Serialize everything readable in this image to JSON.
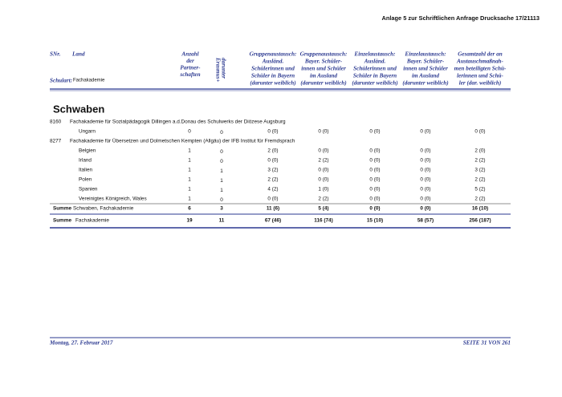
{
  "header": {
    "note": "Anlage 5 zur Schriftlichen Anfrage Drucksache 17/21113"
  },
  "table": {
    "columns": {
      "snr": "SNr.",
      "land": "Land",
      "schulart_label": "Schulart:",
      "schulart": "Fachakademie",
      "partner": [
        "Anzahl",
        "der",
        "Partner-",
        "schaften"
      ],
      "erasmus": [
        "darunter",
        "Erasmus+"
      ],
      "groups": [
        [
          "Gruppenaustausch:",
          "Ausländ.",
          "Schülerinnen und",
          "Schüler in Bayern",
          "(darunter weiblich)"
        ],
        [
          "Gruppenaustausch:",
          "Bayer. Schüler-",
          "innen und Schüler",
          "im Ausland",
          "(darunter weiblich)"
        ],
        [
          "Einzelaustausch:",
          "Ausländ.",
          "Schülerinnen und",
          "Schüler in Bayern",
          "(darunter weiblich)"
        ],
        [
          "Einzelaustausch:",
          "Bayer. Schüler-",
          "innen und Schüler",
          "im Ausland",
          "(darunter weiblich)"
        ],
        [
          "Gesamtzahl der an",
          "Austauschmaßnah-",
          "men beteiligten Schü-",
          "lerinnen und Schü-",
          "ler (dar. weiblich)"
        ]
      ]
    },
    "region": "Schwaben",
    "schools": [
      {
        "snr": "8160",
        "name": "Fachakademie für Sozialpädagogik Dillingen a.d.Donau des Schulwerks der Diözese Augsburg",
        "rows": [
          [
            "Ungarn",
            "0",
            "0",
            "0 (0)",
            "0 (0)",
            "0 (0)",
            "0 (0)",
            "0 (0)"
          ]
        ]
      },
      {
        "snr": "8277",
        "name": "Fachakademie für Übersetzen und Dolmetschen Kempten (Allgäu)  der IFB Institut für Fremdsprach",
        "rows": [
          [
            "Belgien",
            "1",
            "0",
            "2 (0)",
            "0 (0)",
            "0 (0)",
            "0 (0)",
            "2 (0)"
          ],
          [
            "Irland",
            "1",
            "0",
            "0 (0)",
            "2 (2)",
            "0 (0)",
            "0 (0)",
            "2 (2)"
          ],
          [
            "Italien",
            "1",
            "1",
            "3 (2)",
            "0 (0)",
            "0 (0)",
            "0 (0)",
            "3 (2)"
          ],
          [
            "Polen",
            "1",
            "1",
            "2 (2)",
            "0 (0)",
            "0 (0)",
            "0 (0)",
            "2 (2)"
          ],
          [
            "Spanien",
            "1",
            "1",
            "4 (2)",
            "1 (0)",
            "0 (0)",
            "0 (0)",
            "5 (2)"
          ],
          [
            "Vereinigtes Königreich, Wales",
            "1",
            "0",
            "0 (0)",
            "2 (2)",
            "0 (0)",
            "0 (0)",
            "2 (2)"
          ]
        ]
      }
    ],
    "sum_region": {
      "label": "Summe",
      "name": "Schwaben, Fachakademie",
      "values": [
        "6",
        "3",
        "11 (6)",
        "5 (4)",
        "0 (0)",
        "0 (0)",
        "16 (10)"
      ]
    },
    "sum_total": {
      "label": "Summe",
      "name": "Fachakademie",
      "values": [
        "19",
        "11",
        "67 (46)",
        "116 (74)",
        "15 (10)",
        "58 (57)",
        "256 (187)"
      ]
    }
  },
  "footer": {
    "date": "Montag, 27. Februar 2017",
    "page": "SEITE 31 VON 261"
  }
}
